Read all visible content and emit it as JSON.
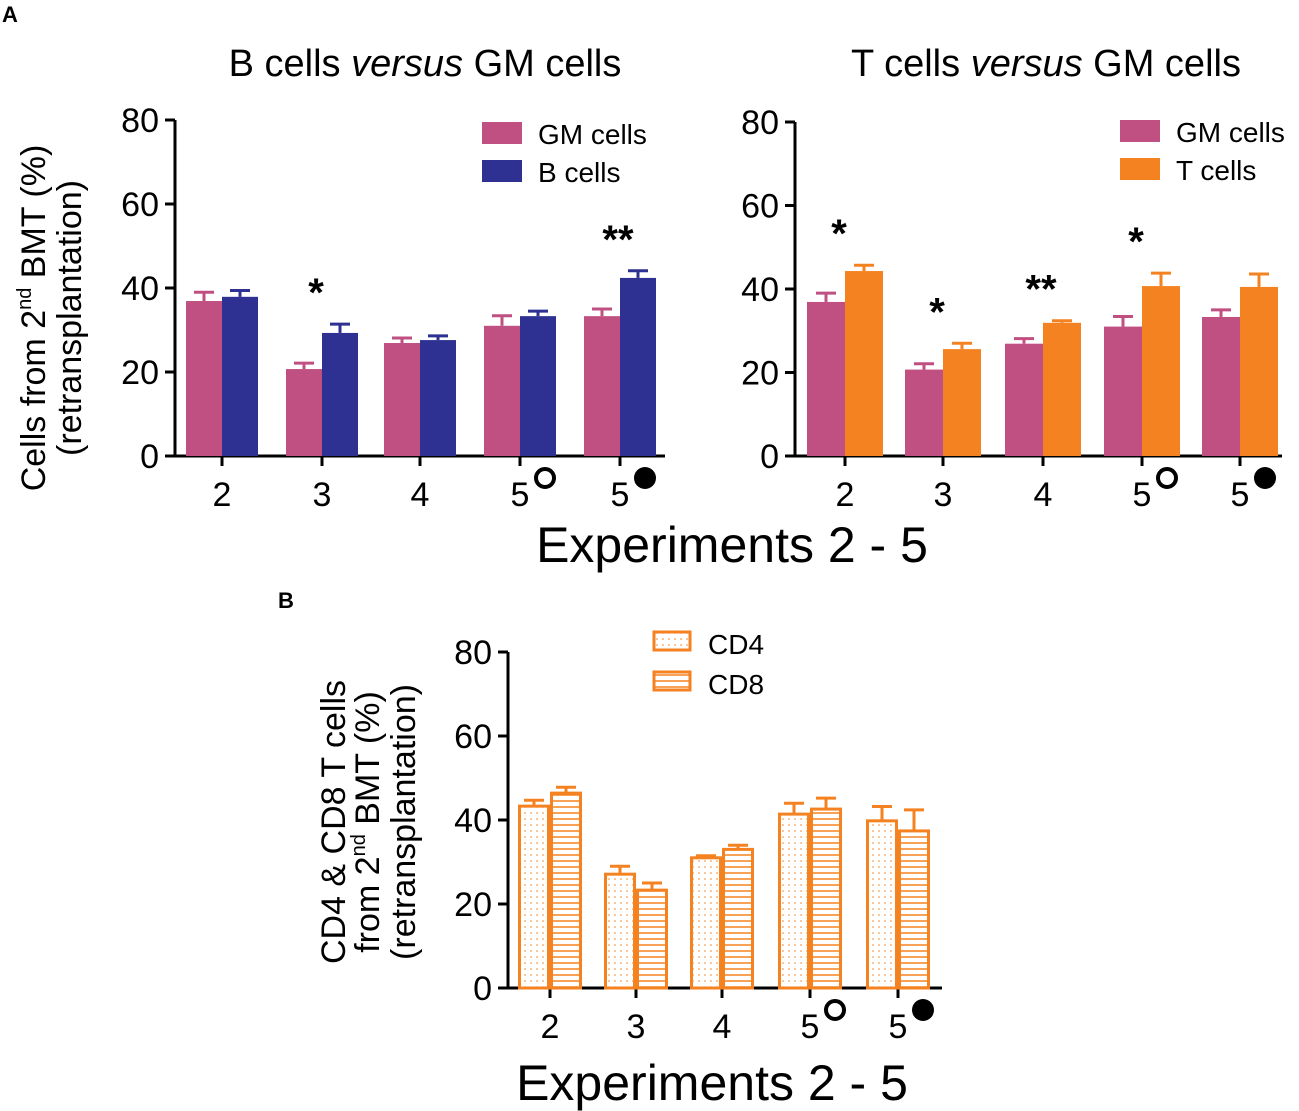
{
  "panel_labels": [
    "A",
    "B"
  ],
  "shared_xlabel_a": "Experiments 2 - 5",
  "shared_xlabel_b": "Experiments 2 - 5",
  "ylabel_a": {
    "line1_pre": "Cells from 2",
    "line1_sup": "nd",
    "line1_post": " BMT (%)",
    "line2": "(retransplantation)"
  },
  "ylabel_b": {
    "line1": "CD4 & CD8 T cells",
    "line2_pre": "from 2",
    "line2_sup": "nd",
    "line2_post": " BMT (%)",
    "line3": "(retransplantation)"
  },
  "colors": {
    "gm": "#c05082",
    "b": "#2e3192",
    "t": "#f58220"
  },
  "chart_data": [
    {
      "type": "bar",
      "title_pre": "B cells ",
      "title_em": "versus",
      "title_post": " GM cells",
      "categories": [
        "2",
        "3",
        "4",
        "5",
        "5"
      ],
      "category_markers": [
        "",
        "",
        "",
        "open-circle",
        "filled-circle"
      ],
      "ylim": [
        0,
        80
      ],
      "yticks": [
        0,
        20,
        40,
        60,
        80
      ],
      "legend": "top-right",
      "series": [
        {
          "name": "GM cells",
          "color": "#c05082",
          "values": [
            36.9,
            20.7,
            26.9,
            31.0,
            33.3
          ],
          "errors": [
            2.1,
            1.4,
            1.2,
            2.4,
            1.7
          ]
        },
        {
          "name": "B cells",
          "color": "#2e3192",
          "values": [
            37.9,
            29.3,
            27.6,
            33.3,
            42.4
          ],
          "errors": [
            1.5,
            2.1,
            1.0,
            1.2,
            1.7
          ]
        }
      ],
      "significance": [
        "",
        "*",
        "",
        "",
        "**"
      ]
    },
    {
      "type": "bar",
      "title_pre": "T cells ",
      "title_em": "versus",
      "title_post": " GM cells",
      "categories": [
        "2",
        "3",
        "4",
        "5",
        "5"
      ],
      "category_markers": [
        "",
        "",
        "",
        "open-circle",
        "filled-circle"
      ],
      "ylim": [
        0,
        80
      ],
      "yticks": [
        0,
        20,
        40,
        60,
        80
      ],
      "legend": "top-right",
      "series": [
        {
          "name": "GM cells",
          "color": "#c05082",
          "values": [
            36.9,
            20.7,
            26.9,
            31.0,
            33.3
          ],
          "errors": [
            2.1,
            1.4,
            1.2,
            2.4,
            1.7
          ]
        },
        {
          "name": "T cells",
          "color": "#f58220",
          "values": [
            44.3,
            25.6,
            31.9,
            40.7,
            40.5
          ],
          "errors": [
            1.4,
            1.4,
            0.5,
            3.1,
            3.1
          ]
        }
      ],
      "significance": [
        "*",
        "*",
        "**",
        "*",
        ""
      ]
    },
    {
      "type": "bar",
      "title_pre": "",
      "title_em": "",
      "title_post": "",
      "categories": [
        "2",
        "3",
        "4",
        "5",
        "5"
      ],
      "category_markers": [
        "",
        "",
        "",
        "open-circle",
        "filled-circle"
      ],
      "ylim": [
        0,
        80
      ],
      "yticks": [
        0,
        20,
        40,
        60,
        80
      ],
      "legend": "top-center",
      "series": [
        {
          "name": "CD4",
          "color": "#f58220",
          "pattern": "dots",
          "values": [
            43.3,
            27.1,
            31.0,
            41.4,
            39.8
          ],
          "errors": [
            1.4,
            1.9,
            0.5,
            2.6,
            3.4
          ]
        },
        {
          "name": "CD8",
          "color": "#f58220",
          "pattern": "hlines",
          "values": [
            46.4,
            23.3,
            33.0,
            42.6,
            37.4
          ],
          "errors": [
            1.4,
            1.7,
            1.0,
            2.6,
            5.0
          ]
        }
      ],
      "significance": [
        "",
        "",
        "",
        "",
        ""
      ]
    }
  ]
}
